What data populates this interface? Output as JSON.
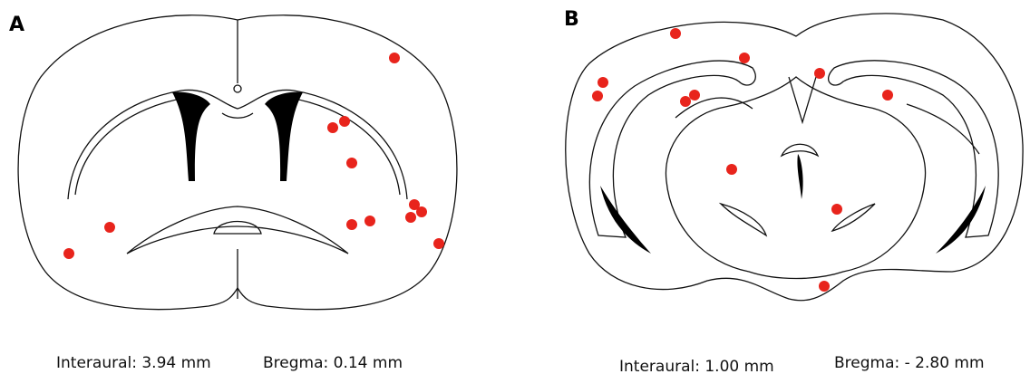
{
  "panels": [
    {
      "label": "A",
      "interaural": "Interaural: 3.94 mm",
      "bregma": "Bregma: 0.14 mm"
    },
    {
      "label": "B",
      "interaural": "Interaural: 1.00 mm",
      "bregma": "Bregma: - 2.80 mm"
    }
  ]
}
